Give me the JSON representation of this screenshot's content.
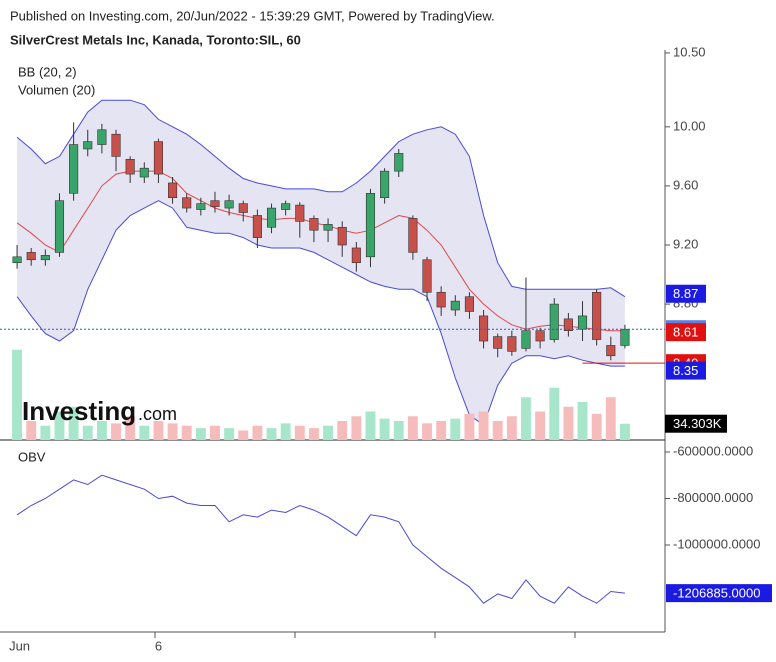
{
  "header": {
    "published": "Published on Investing.com, 20/Jun/2022 - 15:39:29 GMT, Powered by TradingView.",
    "symbol": "SilverCrest Metals Inc, Kanada, Toronto:SIL, 60"
  },
  "logo": {
    "name": "Investing",
    "suffix": ".com"
  },
  "chart_data": [
    {
      "type": "candlestick",
      "indicators": [
        "BB (20, 2)",
        "Volumen (20)"
      ],
      "categories": [
        "Jun",
        null,
        null,
        null,
        null,
        null,
        null,
        null,
        null,
        null,
        "6",
        null,
        null,
        null,
        null,
        null,
        null,
        null,
        null,
        null,
        null,
        null,
        null,
        null,
        null,
        null,
        null,
        null,
        null,
        null,
        null,
        null,
        null,
        null,
        null,
        null,
        null,
        null,
        null,
        null,
        null,
        null,
        null,
        null
      ],
      "open": [
        9.08,
        9.15,
        9.1,
        9.15,
        9.55,
        9.85,
        9.88,
        9.95,
        9.78,
        9.66,
        9.9,
        9.62,
        9.52,
        9.44,
        9.5,
        9.45,
        9.48,
        9.4,
        9.32,
        9.44,
        9.47,
        9.38,
        9.3,
        9.32,
        9.18,
        9.12,
        9.52,
        9.7,
        9.38,
        9.1,
        8.88,
        8.76,
        8.85,
        8.72,
        8.58,
        8.58,
        8.5,
        8.62,
        8.56,
        8.7,
        8.63,
        8.88,
        8.52,
        8.52
      ],
      "high": [
        9.2,
        9.18,
        9.17,
        9.55,
        10.03,
        9.98,
        10.02,
        9.98,
        9.8,
        9.76,
        9.92,
        9.66,
        9.55,
        9.52,
        9.56,
        9.54,
        9.5,
        9.44,
        9.48,
        9.5,
        9.49,
        9.4,
        9.38,
        9.36,
        9.22,
        9.58,
        9.72,
        9.85,
        9.4,
        9.12,
        8.92,
        8.86,
        8.88,
        8.76,
        8.6,
        8.62,
        8.98,
        8.64,
        8.84,
        8.74,
        8.82,
        8.9,
        8.58,
        8.66
      ],
      "low": [
        9.04,
        9.06,
        9.06,
        9.12,
        9.5,
        9.8,
        9.82,
        9.7,
        9.62,
        9.62,
        9.62,
        9.48,
        9.42,
        9.4,
        9.42,
        9.4,
        9.36,
        9.18,
        9.28,
        9.4,
        9.25,
        9.22,
        9.22,
        9.12,
        9.02,
        9.05,
        9.48,
        9.66,
        9.1,
        8.82,
        8.72,
        8.72,
        8.7,
        8.5,
        8.44,
        8.45,
        8.48,
        8.5,
        8.54,
        8.58,
        8.55,
        8.52,
        8.42,
        8.5
      ],
      "close": [
        9.12,
        9.1,
        9.13,
        9.5,
        9.88,
        9.9,
        9.98,
        9.8,
        9.68,
        9.72,
        9.68,
        9.52,
        9.45,
        9.48,
        9.46,
        9.5,
        9.42,
        9.25,
        9.45,
        9.48,
        9.36,
        9.3,
        9.34,
        9.2,
        9.08,
        9.55,
        9.7,
        9.82,
        9.15,
        8.88,
        8.78,
        8.82,
        8.75,
        8.55,
        8.5,
        8.48,
        8.62,
        8.55,
        8.8,
        8.62,
        8.72,
        8.56,
        8.45,
        8.63
      ],
      "colors": {
        "up": "#3aa56a",
        "down": "#c8504a"
      },
      "bb": {
        "upper": [
          9.93,
          9.85,
          9.75,
          9.8,
          9.95,
          10.1,
          10.18,
          10.18,
          10.18,
          10.15,
          10.05,
          10.0,
          9.95,
          9.88,
          9.8,
          9.72,
          9.65,
          9.62,
          9.6,
          9.58,
          9.58,
          9.58,
          9.56,
          9.56,
          9.62,
          9.7,
          9.8,
          9.9,
          9.95,
          9.98,
          10.0,
          9.95,
          9.8,
          9.4,
          9.08,
          8.92,
          8.9,
          8.9,
          8.9,
          8.9,
          8.9,
          8.9,
          8.91,
          8.85
        ],
        "middle": [
          9.35,
          9.28,
          9.2,
          9.15,
          9.3,
          9.45,
          9.6,
          9.68,
          9.7,
          9.7,
          9.7,
          9.65,
          9.55,
          9.5,
          9.45,
          9.42,
          9.4,
          9.38,
          9.37,
          9.38,
          9.38,
          9.35,
          9.33,
          9.3,
          9.28,
          9.3,
          9.35,
          9.4,
          9.38,
          9.3,
          9.2,
          9.05,
          8.9,
          8.8,
          8.72,
          8.66,
          8.63,
          8.65,
          8.66,
          8.65,
          8.64,
          8.63,
          8.62,
          8.62
        ],
        "lower": [
          8.85,
          8.72,
          8.6,
          8.55,
          8.62,
          8.9,
          9.1,
          9.3,
          9.4,
          9.45,
          9.5,
          9.45,
          9.32,
          9.3,
          9.28,
          9.28,
          9.25,
          9.2,
          9.18,
          9.18,
          9.18,
          9.15,
          9.1,
          9.05,
          9.0,
          8.95,
          8.92,
          8.9,
          8.9,
          8.85,
          8.6,
          8.3,
          8.05,
          7.98,
          8.25,
          8.4,
          8.45,
          8.45,
          8.43,
          8.45,
          8.42,
          8.4,
          8.38,
          8.38
        ],
        "band_color": "#4a4ad8",
        "middle_color": "#e04848",
        "fill": "#e4e4f3"
      },
      "volume": {
        "values": [
          190,
          40,
          30,
          60,
          70,
          30,
          40,
          35,
          50,
          30,
          40,
          35,
          30,
          25,
          30,
          25,
          20,
          30,
          25,
          35,
          30,
          25,
          30,
          40,
          50,
          60,
          45,
          40,
          50,
          35,
          40,
          45,
          55,
          60,
          40,
          50,
          90,
          60,
          110,
          70,
          80,
          55,
          90,
          34.303
        ],
        "max": 200,
        "up_color": "#a8e6cc",
        "down_color": "#f6bcbc"
      },
      "volume_label": {
        "value": 34.303,
        "label": "34.303K"
      },
      "ylim": [
        7.88,
        10.52
      ],
      "yticks": [
        {
          "value": 10.5,
          "label": "10.50"
        },
        {
          "value": 10,
          "label": "10.00"
        },
        {
          "value": 9.6,
          "label": "9.60"
        },
        {
          "value": 9.2,
          "label": "9.20"
        },
        {
          "value": 8.8,
          "label": "8.80"
        }
      ],
      "price_labels": [
        {
          "value": 8.87,
          "color": "#1a1ae0"
        },
        {
          "value": 8.63,
          "color": "#5b7fe8"
        },
        {
          "value": 8.61,
          "color": "#e01010"
        },
        {
          "value": 8.4,
          "label": "8.40",
          "color": "#e01010"
        },
        {
          "value": 8.35,
          "color": "#1a1ae0"
        }
      ]
    },
    {
      "type": "line",
      "title": "OBV",
      "values": [
        -870000,
        -830000,
        -800000,
        -760000,
        -720000,
        -740000,
        -700000,
        -720000,
        -740000,
        -760000,
        -800000,
        -790000,
        -820000,
        -830000,
        -830000,
        -900000,
        -870000,
        -880000,
        -850000,
        -860000,
        -830000,
        -850000,
        -880000,
        -920000,
        -960000,
        -870000,
        -880000,
        -900000,
        -1000000,
        -1050000,
        -1100000,
        -1140000,
        -1180000,
        -1250000,
        -1210000,
        -1230000,
        -1150000,
        -1220000,
        -1250000,
        -1180000,
        -1220000,
        -1250000,
        -1200000,
        -1206885
      ],
      "color": "#4a4ad8",
      "ylim": [
        -1374000,
        -570000
      ],
      "yticks": [
        {
          "value": -600000,
          "label": "-600000.0000"
        },
        {
          "value": -800000,
          "label": "-800000.0000"
        },
        {
          "value": -1000000,
          "label": "-1000000.0000"
        }
      ],
      "last_label": {
        "value": -1206885,
        "label": "-1206885.0000",
        "color": "#1a1ae0"
      }
    }
  ]
}
